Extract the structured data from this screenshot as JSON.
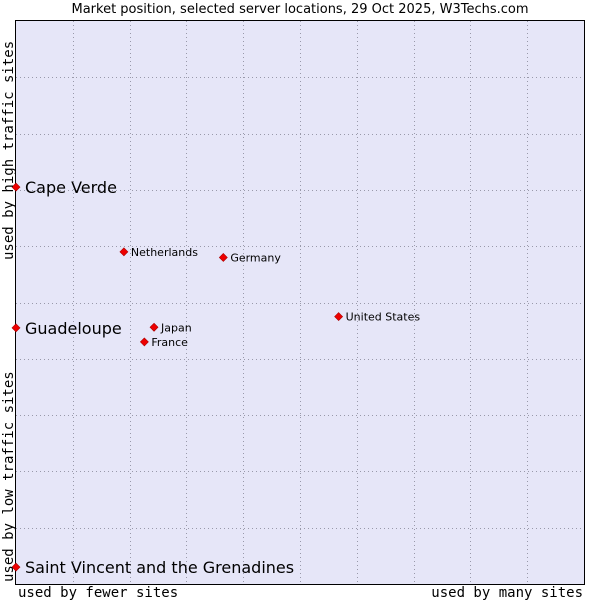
{
  "chart_data": {
    "type": "scatter",
    "title": "Market position, selected server locations, 29 Oct 2025, W3Techs.com",
    "xlabel_low": "used by fewer sites",
    "xlabel_high": "used by many sites",
    "ylabel_low": "used by low traffic sites",
    "ylabel_high": "used by high traffic sites",
    "xlim": [
      0,
      100
    ],
    "ylim": [
      0,
      100
    ],
    "grid": true,
    "colors": {
      "plot_bg": "#e6e6f8",
      "grid": "#9999aa",
      "point": "#ee0000",
      "axis": "#000000"
    },
    "points": [
      {
        "name": "Cape Verde",
        "x": 0,
        "y": 70.5,
        "size": "large"
      },
      {
        "name": "Netherlands",
        "x": 19.0,
        "y": 59.0,
        "size": "small"
      },
      {
        "name": "Germany",
        "x": 36.5,
        "y": 58.0,
        "size": "small"
      },
      {
        "name": "Guadeloupe",
        "x": 0,
        "y": 45.5,
        "size": "large"
      },
      {
        "name": "United States",
        "x": 56.8,
        "y": 47.5,
        "size": "small"
      },
      {
        "name": "Japan",
        "x": 24.3,
        "y": 45.6,
        "size": "small"
      },
      {
        "name": "France",
        "x": 22.6,
        "y": 43.0,
        "size": "small"
      },
      {
        "name": "Saint Vincent and the Grenadines",
        "x": 0,
        "y": 3.0,
        "size": "large"
      }
    ]
  }
}
